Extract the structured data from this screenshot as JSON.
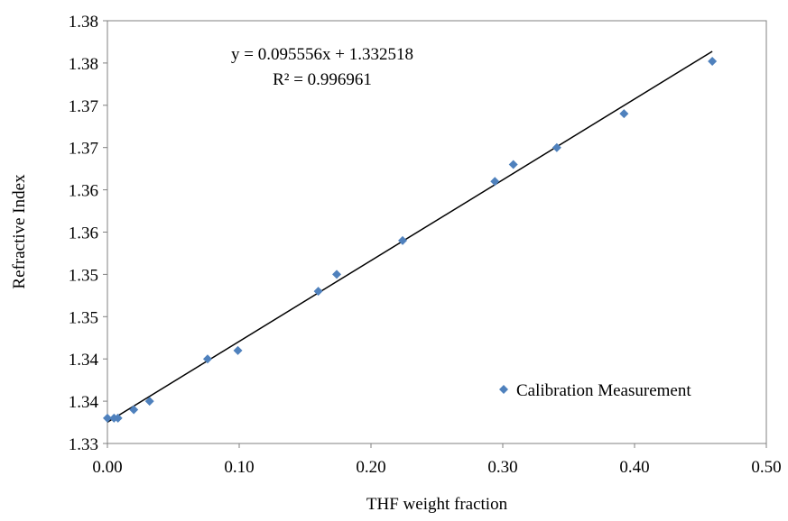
{
  "chart_data": {
    "type": "scatter",
    "xlabel": "THF weight fraction",
    "ylabel": "Refractive Index",
    "xlim": [
      0,
      0.5
    ],
    "ylim": [
      1.33,
      1.38
    ],
    "x_ticks": [
      "0.00",
      "0.10",
      "0.20",
      "0.30",
      "0.40",
      "0.50"
    ],
    "y_ticks": [
      "1.33",
      "1.34",
      "1.34",
      "1.35",
      "1.35",
      "1.36",
      "1.36",
      "1.37",
      "1.37",
      "1.38",
      "1.38"
    ],
    "grid": false,
    "legend_position": "bottom-right",
    "series": [
      {
        "name": "Calibration Measurement",
        "color": "#4f81bd",
        "marker": "diamond",
        "points": [
          [
            0.0,
            1.333
          ],
          [
            0.005,
            1.333
          ],
          [
            0.008,
            1.333
          ],
          [
            0.02,
            1.334
          ],
          [
            0.032,
            1.335
          ],
          [
            0.076,
            1.34
          ],
          [
            0.099,
            1.341
          ],
          [
            0.16,
            1.348
          ],
          [
            0.174,
            1.35
          ],
          [
            0.224,
            1.354
          ],
          [
            0.294,
            1.361
          ],
          [
            0.308,
            1.363
          ],
          [
            0.341,
            1.365
          ],
          [
            0.392,
            1.369
          ],
          [
            0.459,
            1.3752
          ]
        ]
      }
    ],
    "trendline": {
      "slope": 0.095556,
      "intercept": 1.332518,
      "x_range": [
        0,
        0.459
      ],
      "color": "#000000"
    },
    "annotations": {
      "equation": "y = 0.095556x + 1.332518",
      "r_squared": "R² = 0.996961"
    }
  }
}
